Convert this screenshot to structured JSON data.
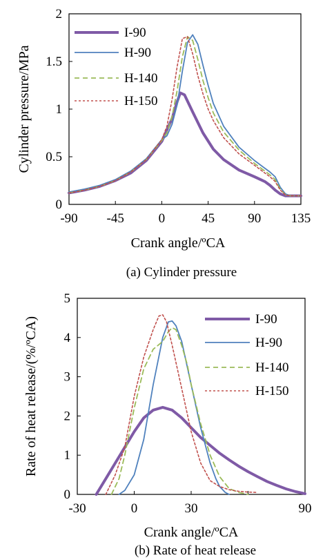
{
  "colors": {
    "I-90": "#7f5aa6",
    "H-90": "#4f81bd",
    "H-140": "#9bbb59",
    "H-150": "#c0504d"
  },
  "chart_data": [
    {
      "type": "line",
      "caption": "(a) Cylinder pressure",
      "xlabel": "Crank angle/ºCA",
      "ylabel": "Cylinder pressure/MPa",
      "xlim": [
        -90,
        135
      ],
      "ylim": [
        0,
        2
      ],
      "xticks": [
        -90,
        -45,
        0,
        45,
        90,
        135
      ],
      "yticks": [
        0,
        0.5,
        1,
        1.5,
        2
      ],
      "xtick_labels": [
        "-90",
        "-45",
        "0",
        "45",
        "90",
        "135"
      ],
      "ytick_labels": [
        "0",
        "0.5",
        "1",
        "1.5",
        "2"
      ],
      "legend_position": "top-left",
      "series": [
        {
          "name": "I-90",
          "style": "solid-thick",
          "color": "#7f5aa6",
          "x": [
            -90,
            -75,
            -60,
            -45,
            -30,
            -15,
            0,
            10,
            15,
            18,
            22,
            30,
            40,
            50,
            60,
            75,
            90,
            100,
            105,
            110,
            115,
            120,
            125,
            130,
            135
          ],
          "y": [
            0.12,
            0.15,
            0.19,
            0.25,
            0.33,
            0.46,
            0.66,
            0.9,
            1.08,
            1.17,
            1.15,
            0.97,
            0.75,
            0.58,
            0.47,
            0.36,
            0.29,
            0.24,
            0.2,
            0.15,
            0.11,
            0.09,
            0.09,
            0.09,
            0.09
          ]
        },
        {
          "name": "H-90",
          "style": "solid",
          "color": "#4f81bd",
          "x": [
            -90,
            -75,
            -60,
            -45,
            -30,
            -15,
            0,
            5,
            10,
            15,
            20,
            25,
            30,
            35,
            40,
            45,
            50,
            60,
            75,
            90,
            100,
            105,
            110,
            115,
            120,
            125,
            130,
            135
          ],
          "y": [
            0.13,
            0.16,
            0.2,
            0.26,
            0.35,
            0.48,
            0.68,
            0.72,
            0.84,
            1.05,
            1.4,
            1.7,
            1.78,
            1.68,
            1.46,
            1.25,
            1.06,
            0.82,
            0.6,
            0.46,
            0.38,
            0.34,
            0.29,
            0.18,
            0.11,
            0.09,
            0.09,
            0.09
          ]
        },
        {
          "name": "H-140",
          "style": "dashed",
          "color": "#9bbb59",
          "x": [
            -90,
            -75,
            -60,
            -45,
            -30,
            -15,
            0,
            5,
            10,
            15,
            20,
            25,
            30,
            35,
            40,
            45,
            50,
            60,
            75,
            90,
            100,
            105,
            110,
            115,
            120,
            125,
            130,
            135
          ],
          "y": [
            0.12,
            0.15,
            0.19,
            0.25,
            0.34,
            0.47,
            0.67,
            0.75,
            0.92,
            1.2,
            1.55,
            1.76,
            1.72,
            1.52,
            1.3,
            1.12,
            0.96,
            0.76,
            0.57,
            0.43,
            0.35,
            0.31,
            0.26,
            0.16,
            0.1,
            0.09,
            0.09,
            0.09
          ]
        },
        {
          "name": "H-150",
          "style": "dotted",
          "color": "#c0504d",
          "x": [
            -90,
            -75,
            -60,
            -45,
            -30,
            -15,
            0,
            5,
            10,
            15,
            20,
            25,
            30,
            35,
            40,
            45,
            50,
            60,
            75,
            90,
            100,
            105,
            110,
            115,
            120,
            125,
            130,
            135
          ],
          "y": [
            0.12,
            0.15,
            0.19,
            0.25,
            0.34,
            0.47,
            0.68,
            0.82,
            1.1,
            1.45,
            1.74,
            1.76,
            1.58,
            1.35,
            1.16,
            1.0,
            0.88,
            0.7,
            0.53,
            0.41,
            0.33,
            0.29,
            0.24,
            0.15,
            0.1,
            0.09,
            0.09,
            0.09
          ]
        }
      ]
    },
    {
      "type": "line",
      "caption": "(b) Rate of heat release",
      "xlabel": "Crank angle/ºCA",
      "ylabel": "Rate of heat release/(%/ºCA)",
      "xlim": [
        -30,
        90
      ],
      "ylim": [
        0,
        5
      ],
      "xticks": [
        -30,
        0,
        30,
        60,
        90
      ],
      "yticks": [
        0,
        1,
        2,
        3,
        4,
        5
      ],
      "xtick_labels": [
        "-30",
        "0",
        "30",
        "",
        "90"
      ],
      "ytick_labels": [
        "0",
        "1",
        "2",
        "3",
        "4",
        "5"
      ],
      "legend_position": "top-right",
      "series": [
        {
          "name": "I-90",
          "style": "solid-thick",
          "color": "#7f5aa6",
          "x": [
            -20,
            -15,
            -10,
            -5,
            0,
            5,
            10,
            15,
            20,
            25,
            30,
            35,
            40,
            45,
            50,
            55,
            60,
            65,
            70,
            75,
            80,
            85,
            90
          ],
          "y": [
            0,
            0.4,
            0.8,
            1.2,
            1.6,
            1.95,
            2.15,
            2.22,
            2.15,
            1.95,
            1.7,
            1.45,
            1.25,
            1.05,
            0.88,
            0.72,
            0.58,
            0.45,
            0.33,
            0.23,
            0.14,
            0.07,
            0.02
          ]
        },
        {
          "name": "H-90",
          "style": "solid",
          "color": "#4f81bd",
          "x": [
            -8,
            -5,
            0,
            5,
            10,
            15,
            18,
            20,
            22,
            25,
            30,
            35,
            40,
            43,
            45,
            48,
            50
          ],
          "y": [
            0,
            0.1,
            0.5,
            1.4,
            2.8,
            4.0,
            4.4,
            4.42,
            4.3,
            3.9,
            2.8,
            1.7,
            0.8,
            0.4,
            0.2,
            0.05,
            0
          ]
        },
        {
          "name": "H-140",
          "style": "dashed",
          "color": "#9bbb59",
          "x": [
            -12,
            -8,
            -5,
            0,
            5,
            10,
            15,
            18,
            20,
            22,
            25,
            28,
            30,
            35,
            40,
            45,
            50,
            55,
            60
          ],
          "y": [
            0,
            0.4,
            1.0,
            2.2,
            3.2,
            3.7,
            3.9,
            4.15,
            4.25,
            4.2,
            3.8,
            3.3,
            2.8,
            1.8,
            1.0,
            0.45,
            0.15,
            0.05,
            0
          ]
        },
        {
          "name": "H-150",
          "style": "dotted",
          "color": "#c0504d",
          "x": [
            -15,
            -10,
            -5,
            0,
            5,
            10,
            13,
            15,
            17,
            20,
            25,
            30,
            35,
            40,
            45,
            50,
            55,
            60,
            65
          ],
          "y": [
            0,
            0.5,
            1.2,
            2.5,
            3.5,
            4.2,
            4.55,
            4.58,
            4.4,
            3.8,
            2.7,
            1.6,
            0.8,
            0.35,
            0.2,
            0.12,
            0.08,
            0.06,
            0.05
          ]
        }
      ]
    }
  ]
}
